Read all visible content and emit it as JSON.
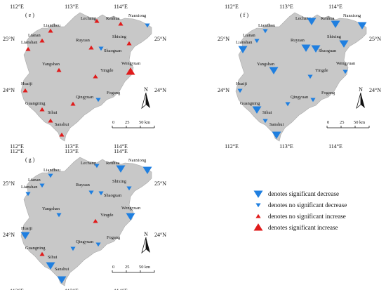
{
  "station_names": [
    "Lechang",
    "Renhua",
    "Nanxiong",
    "Lianzhou",
    "Lianshan",
    "Lianan",
    "Ruyuan",
    "Shixing",
    "Shaoguan",
    "Yangshan",
    "Yingde",
    "Wengyuan",
    "Huaiji",
    "Fogang",
    "Qingyuan",
    "Guangning",
    "Sihui",
    "Sanshui"
  ],
  "axes": {
    "x_ticks": [
      "112°E",
      "113°E",
      "114°E"
    ],
    "y_ticks": [
      "25°N",
      "24°N"
    ]
  },
  "scale_bar": {
    "labels": [
      "0",
      "25",
      "50 km"
    ]
  },
  "north_label": "N",
  "panels": [
    {
      "id": "e",
      "label": "( e )",
      "symbols": [
        "inc_ns",
        "inc_ns",
        "dec_ns",
        "inc_ns",
        "inc_ns",
        "inc_ns",
        "inc_ns",
        "inc_ns",
        "dec_ns",
        "inc_ns",
        "inc_ns",
        "inc_sig",
        "inc_ns",
        "dec_ns",
        "inc_ns",
        "inc_ns",
        "inc_ns",
        "inc_ns"
      ]
    },
    {
      "id": "f",
      "label": "( f )",
      "symbols": [
        "dec_sig",
        "dec_sig",
        "dec_sig",
        "dec_ns",
        "dec_sig",
        "dec_ns",
        "dec_sig",
        "dec_sig",
        "dec_sig",
        "dec_sig",
        "dec_ns",
        "dec_ns",
        "dec_ns",
        "dec_ns",
        "dec_ns",
        "dec_sig",
        "dec_ns",
        "dec_sig"
      ]
    },
    {
      "id": "g",
      "label": "( g )",
      "symbols": [
        "dec_ns",
        "dec_sig",
        "dec_sig",
        "dec_ns",
        "dec_ns",
        "dec_ns",
        "dec_ns",
        "dec_ns",
        "dec_ns",
        "dec_ns",
        "inc_ns",
        "dec_sig",
        "dec_sig",
        "dec_ns",
        "dec_ns",
        "inc_ns",
        "dec_sig",
        "dec_sig"
      ]
    }
  ],
  "legend": {
    "items": [
      {
        "key": "dec_sig",
        "label": "denotes significant decrease"
      },
      {
        "key": "dec_ns",
        "label": "denotes no significant decrease"
      },
      {
        "key": "inc_ns",
        "label": "denotes no significant increase"
      },
      {
        "key": "inc_sig",
        "label": "denotes significant increase"
      }
    ]
  },
  "colors": {
    "land": "#c8c8c8",
    "decrease": "#1f7fe0",
    "increase": "#e01b1b",
    "text": "#111111"
  }
}
